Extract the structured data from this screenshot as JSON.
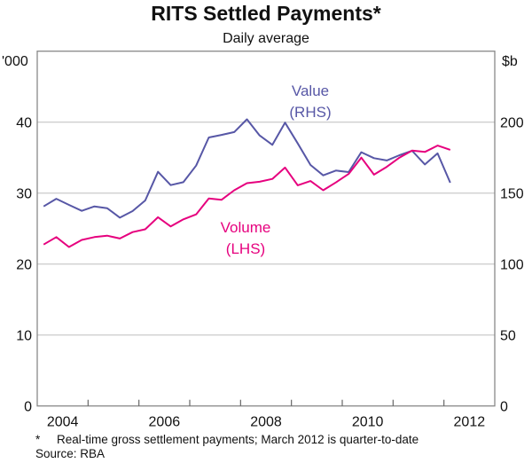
{
  "chart_data": {
    "type": "line",
    "title": "RITS Settled Payments*",
    "subtitle": "Daily average",
    "left_unit": "'000",
    "right_unit": "$b",
    "x_tick_labels": [
      "2004",
      "2006",
      "2008",
      "2010",
      "2012"
    ],
    "xlim": [
      2004,
      2013
    ],
    "ylim_left": [
      0,
      50
    ],
    "ylim_right": [
      0,
      250
    ],
    "y_ticks_left": [
      "0",
      "10",
      "20",
      "30",
      "40"
    ],
    "y_ticks_right": [
      "0",
      "50",
      "100",
      "150",
      "200"
    ],
    "grid": true,
    "frequency": "quarterly, 2004 Q1 to 2012 Q1",
    "series": [
      {
        "name": "Value",
        "annotation": [
          "Value",
          "(RHS)"
        ],
        "axis": "right",
        "color": "#5757a6",
        "values": [
          140.6,
          146,
          141.7,
          137.5,
          140.6,
          139.4,
          132.7,
          137.3,
          144.8,
          165,
          155.6,
          157.7,
          169.4,
          189.2,
          191,
          193,
          202,
          190.6,
          184,
          199.6,
          185,
          169.8,
          162.5,
          165.9,
          164.8,
          178.8,
          174.6,
          173,
          176.7,
          179.8,
          170.2,
          178,
          157.3
        ]
      },
      {
        "name": "Volume",
        "annotation": [
          "Volume",
          "(LHS)"
        ],
        "axis": "left",
        "color": "#e6007e",
        "values": [
          22.75,
          23.8,
          22.4,
          23.4,
          23.8,
          24.0,
          23.6,
          24.5,
          24.9,
          26.6,
          25.3,
          26.3,
          27.0,
          29.25,
          29.05,
          30.4,
          31.4,
          31.6,
          32.0,
          33.6,
          31.1,
          31.7,
          30.4,
          31.5,
          32.7,
          35.0,
          32.6,
          33.7,
          35.0,
          36.0,
          35.8,
          36.7,
          36.1
        ]
      }
    ],
    "footnote": "*     Real-time gross settlement payments; March 2012 is quarter-to-date",
    "source": "Source: RBA"
  }
}
